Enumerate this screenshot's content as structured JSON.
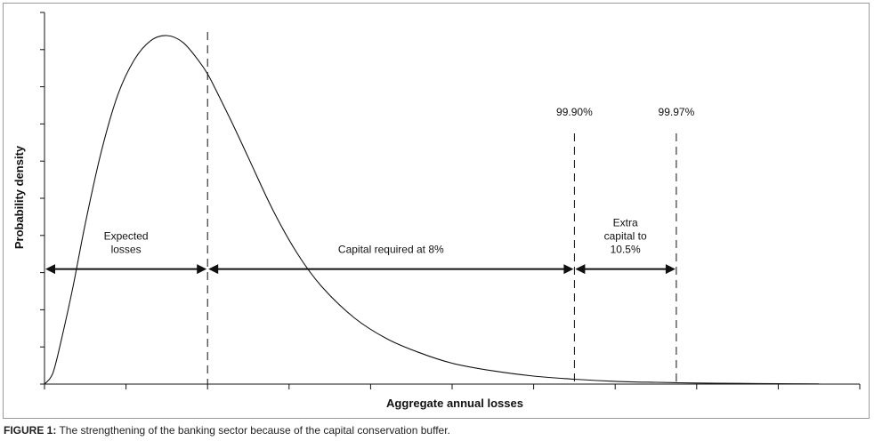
{
  "chart_data": {
    "type": "line",
    "title": "",
    "xlabel": "Aggregate annual losses",
    "ylabel": "Probability density",
    "x_tick_count": 10,
    "y_tick_count": 10,
    "xlim": [
      0,
      10
    ],
    "ylim": [
      0,
      10
    ],
    "series": [
      {
        "x": [
          0,
          0.1,
          0.2,
          0.35,
          0.5,
          0.7,
          0.9,
          1.1,
          1.3,
          1.5,
          1.7,
          1.9,
          2.0,
          2.1,
          2.3,
          2.5,
          2.8,
          3.1,
          3.4,
          3.8,
          4.2,
          4.6,
          5.0,
          5.5,
          6.0,
          6.5,
          7.0,
          7.5,
          8.0,
          8.5,
          9.0,
          9.5
        ],
        "y": [
          0,
          0.3,
          1.2,
          2.8,
          4.6,
          6.7,
          8.3,
          9.3,
          9.85,
          10.0,
          9.8,
          9.25,
          8.9,
          8.45,
          7.5,
          6.5,
          5.0,
          3.75,
          2.8,
          1.9,
          1.3,
          0.9,
          0.6,
          0.38,
          0.23,
          0.14,
          0.08,
          0.05,
          0.03,
          0.02,
          0.01,
          0.005
        ]
      }
    ],
    "markers": [
      {
        "x": 2.0,
        "label": ""
      },
      {
        "x": 6.5,
        "label": "99.90%"
      },
      {
        "x": 7.75,
        "label": "99.97%"
      }
    ],
    "regions": [
      {
        "from": 0,
        "to": 2.0,
        "label_lines": [
          "Expected",
          "losses"
        ]
      },
      {
        "from": 2.0,
        "to": 6.5,
        "label_lines": [
          "Capital required at 8%"
        ]
      },
      {
        "from": 6.5,
        "to": 7.75,
        "label_lines": [
          "Extra",
          "capital to",
          "10.5%"
        ]
      }
    ],
    "arrow_level": 3.3
  },
  "caption": {
    "prefix": "FIGURE 1:",
    "text": "The strengthening of the banking sector because of the capital conservation buffer."
  }
}
